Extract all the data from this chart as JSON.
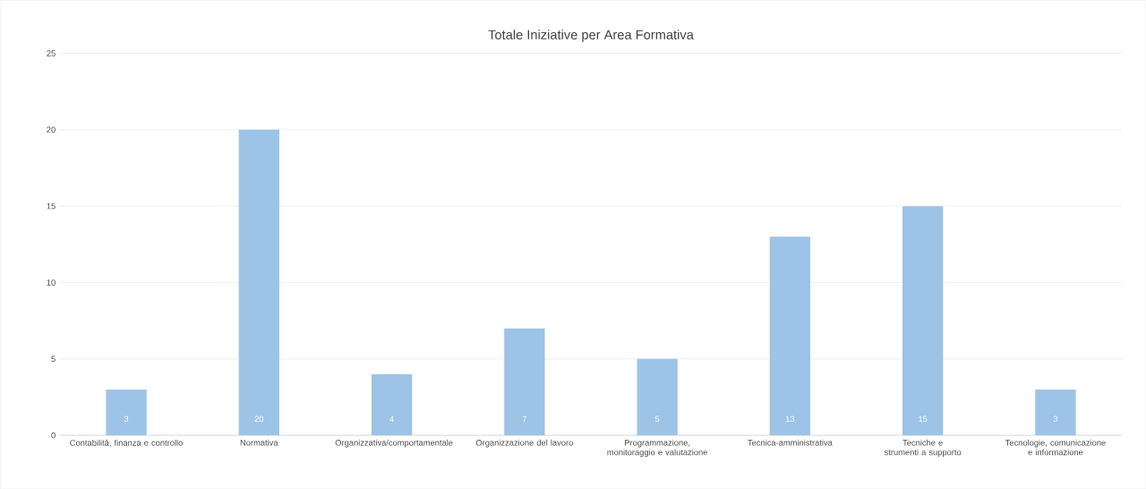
{
  "chart_data": {
    "type": "bar",
    "title": "Totale Iniziative per Area Formativa",
    "categories": [
      "Contabilità, finanza e controllo",
      "Normativa",
      "Organizzativa/comportamentale",
      "Organizzazione del lavoro",
      "Programmazione, monitoraggio e valutazione",
      "Tecnica-amministrativa",
      "Tecniche e strumenti a supporto",
      "Tecnologie, comunicazione e informazione"
    ],
    "values": [
      3,
      20,
      4,
      7,
      5,
      13,
      15,
      3
    ],
    "color": "#9dc3e6",
    "data_labels": true,
    "ylim": [
      0,
      25
    ],
    "yticks": [
      0,
      5,
      10,
      15,
      20,
      25
    ],
    "grid": "y"
  }
}
